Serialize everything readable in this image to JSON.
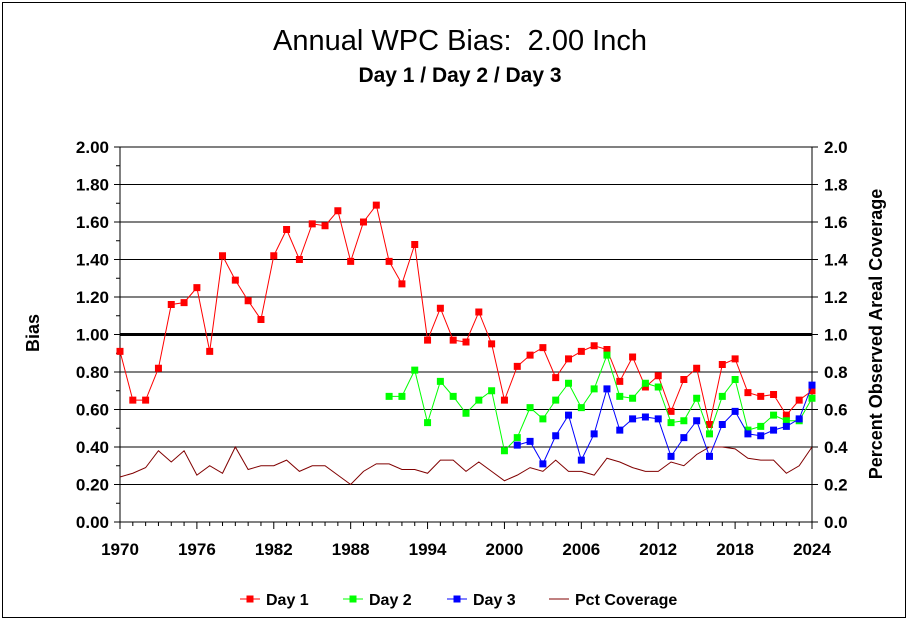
{
  "chart_data": {
    "type": "line",
    "title": "Annual WPC Bias:  2.00 Inch",
    "subtitle": "Day 1 / Day 2 / Day 3",
    "ylabel": "Bias",
    "y2label": "Percent Observed Areal Coverage",
    "xlim": [
      1970,
      2024
    ],
    "ylim": [
      0,
      2
    ],
    "y2lim": [
      0,
      2
    ],
    "x_ticks": [
      "1970",
      "1976",
      "1982",
      "1988",
      "1994",
      "2000",
      "2006",
      "2012",
      "2018",
      "2024"
    ],
    "y_ticks": [
      "0.00",
      "0.20",
      "0.40",
      "0.60",
      "0.80",
      "1.00",
      "1.20",
      "1.40",
      "1.60",
      "1.80",
      "2.00"
    ],
    "y2_ticks": [
      "0.0",
      "0.2",
      "0.4",
      "0.6",
      "0.8",
      "1.0",
      "1.2",
      "1.4",
      "1.6",
      "1.8",
      "2.0"
    ],
    "reference_line": 1.0,
    "grid": true,
    "legend_position": "bottom",
    "series": [
      {
        "name": "Day 1",
        "color": "#ff0000",
        "marker": "square",
        "x": [
          1970,
          1971,
          1972,
          1973,
          1974,
          1975,
          1976,
          1977,
          1978,
          1979,
          1980,
          1981,
          1982,
          1983,
          1984,
          1985,
          1986,
          1987,
          1988,
          1989,
          1990,
          1991,
          1992,
          1993,
          1994,
          1995,
          1996,
          1997,
          1998,
          1999,
          2000,
          2001,
          2002,
          2003,
          2004,
          2005,
          2006,
          2007,
          2008,
          2009,
          2010,
          2011,
          2012,
          2013,
          2014,
          2015,
          2016,
          2017,
          2018,
          2019,
          2020,
          2021,
          2022,
          2023,
          2024
        ],
        "y": [
          0.91,
          0.65,
          0.65,
          0.82,
          1.16,
          1.17,
          1.25,
          0.91,
          1.42,
          1.29,
          1.18,
          1.08,
          1.42,
          1.56,
          1.4,
          1.59,
          1.58,
          1.66,
          1.39,
          1.6,
          1.69,
          1.39,
          1.27,
          1.48,
          0.97,
          1.14,
          0.97,
          0.96,
          1.12,
          0.95,
          0.65,
          0.83,
          0.89,
          0.93,
          0.77,
          0.87,
          0.91,
          0.94,
          0.92,
          0.75,
          0.88,
          0.72,
          0.78,
          0.59,
          0.76,
          0.82,
          0.52,
          0.84,
          0.87,
          0.69,
          0.67,
          0.68,
          0.57,
          0.65,
          0.7
        ]
      },
      {
        "name": "Day 2",
        "color": "#00ff00",
        "marker": "square",
        "x": [
          1991,
          1992,
          1993,
          1994,
          1995,
          1996,
          1997,
          1998,
          1999,
          2000,
          2001,
          2002,
          2003,
          2004,
          2005,
          2006,
          2007,
          2008,
          2009,
          2010,
          2011,
          2012,
          2013,
          2014,
          2015,
          2016,
          2017,
          2018,
          2019,
          2020,
          2021,
          2022,
          2023,
          2024
        ],
        "y": [
          0.67,
          0.67,
          0.81,
          0.53,
          0.75,
          0.67,
          0.58,
          0.65,
          0.7,
          0.38,
          0.45,
          0.61,
          0.55,
          0.65,
          0.74,
          0.61,
          0.71,
          0.89,
          0.67,
          0.66,
          0.74,
          0.72,
          0.53,
          0.54,
          0.66,
          0.47,
          0.67,
          0.76,
          0.49,
          0.51,
          0.57,
          0.54,
          0.54,
          0.66
        ]
      },
      {
        "name": "Day 3",
        "color": "#0000ff",
        "marker": "square",
        "x": [
          2001,
          2002,
          2003,
          2004,
          2005,
          2006,
          2007,
          2008,
          2009,
          2010,
          2011,
          2012,
          2013,
          2014,
          2015,
          2016,
          2017,
          2018,
          2019,
          2020,
          2021,
          2022,
          2023,
          2024
        ],
        "y": [
          0.41,
          0.43,
          0.31,
          0.46,
          0.57,
          0.33,
          0.47,
          0.71,
          0.49,
          0.55,
          0.56,
          0.55,
          0.35,
          0.45,
          0.54,
          0.35,
          0.52,
          0.59,
          0.47,
          0.46,
          0.49,
          0.51,
          0.55,
          0.73
        ]
      },
      {
        "name": "Pct Coverage",
        "color": "#800000",
        "marker": "none",
        "axis": "right",
        "x": [
          1970,
          1971,
          1972,
          1973,
          1974,
          1975,
          1976,
          1977,
          1978,
          1979,
          1980,
          1981,
          1982,
          1983,
          1984,
          1985,
          1986,
          1987,
          1988,
          1989,
          1990,
          1991,
          1992,
          1993,
          1994,
          1995,
          1996,
          1997,
          1998,
          1999,
          2000,
          2001,
          2002,
          2003,
          2004,
          2005,
          2006,
          2007,
          2008,
          2009,
          2010,
          2011,
          2012,
          2013,
          2014,
          2015,
          2016,
          2017,
          2018,
          2019,
          2020,
          2021,
          2022,
          2023,
          2024
        ],
        "y": [
          0.24,
          0.26,
          0.29,
          0.38,
          0.32,
          0.38,
          0.25,
          0.3,
          0.26,
          0.4,
          0.28,
          0.3,
          0.3,
          0.33,
          0.27,
          0.3,
          0.3,
          0.25,
          0.2,
          0.27,
          0.31,
          0.31,
          0.28,
          0.28,
          0.26,
          0.33,
          0.33,
          0.27,
          0.32,
          0.27,
          0.22,
          0.25,
          0.29,
          0.27,
          0.33,
          0.27,
          0.27,
          0.25,
          0.34,
          0.32,
          0.29,
          0.27,
          0.27,
          0.32,
          0.3,
          0.36,
          0.4,
          0.4,
          0.39,
          0.34,
          0.33,
          0.33,
          0.26,
          0.3,
          0.4
        ]
      }
    ]
  }
}
